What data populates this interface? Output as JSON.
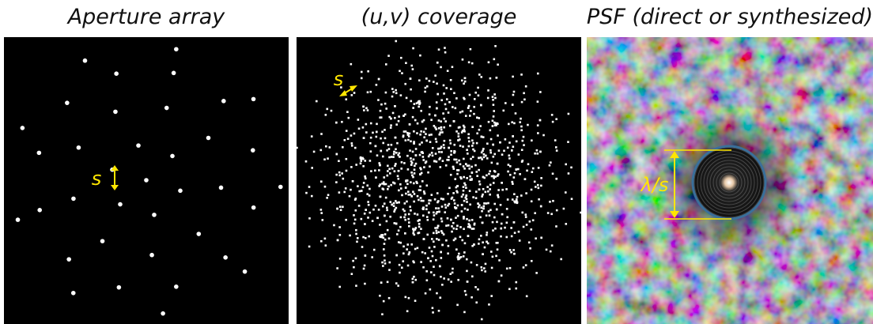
{
  "panels": [
    {
      "title": "Aperture array",
      "label": "s"
    },
    {
      "title": "(u,v) coverage",
      "label": "s"
    },
    {
      "title": "PSF (direct or synthesized)",
      "label": "λ/s"
    }
  ]
}
